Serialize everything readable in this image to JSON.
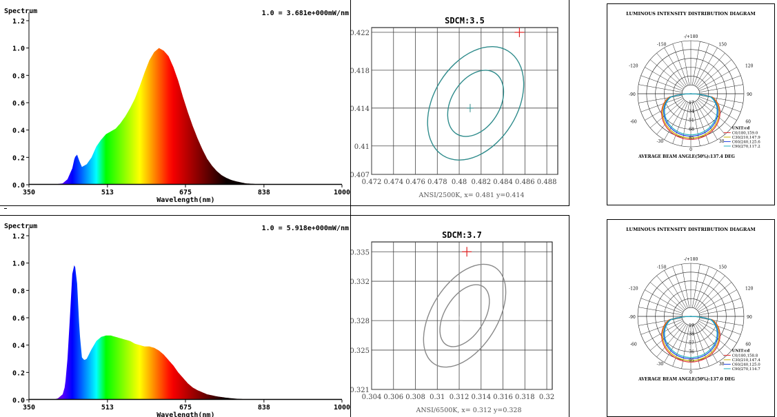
{
  "spectra": [
    {
      "title": "Spectrum",
      "scale_note": "1.0 = 3.681e+000mW/nm",
      "xlabel": "Wavelength(nm)",
      "x_ticks": [
        "350",
        "513",
        "675",
        "838",
        "1000"
      ],
      "y_ticks": [
        "0.0",
        "0.2",
        "0.4",
        "0.6",
        "0.8",
        "1.0",
        "1.2"
      ]
    },
    {
      "title": "Spectrum",
      "scale_note": "1.0 = 5.918e+000mW/nm",
      "xlabel": "Wavelength(nm)",
      "x_ticks": [
        "350",
        "513",
        "675",
        "838",
        "1000"
      ],
      "y_ticks": [
        "0.0",
        "0.2",
        "0.4",
        "0.6",
        "0.8",
        "1.0",
        "1.2"
      ]
    }
  ],
  "sdcm": [
    {
      "title": "SDCM:3.5",
      "footer": "ANSI/2500K, x= 0.481 y=0.414",
      "x_ticks": [
        "0.472",
        "0.474",
        "0.476",
        "0.478",
        "0.48",
        "0.482",
        "0.484",
        "0.486",
        "0.488"
      ],
      "y_ticks": [
        "0.422",
        "0.418",
        "0.414",
        "0.41",
        "0.407"
      ],
      "ellipse_color": "#2e8b8b"
    },
    {
      "title": "SDCM:3.7",
      "footer": "ANSI/6500K, x= 0.312 y=0.328",
      "x_ticks": [
        "0.304",
        "0.306",
        "0.308",
        "0.31",
        "0.312",
        "0.314",
        "0.316",
        "0.318",
        "0.32"
      ],
      "y_ticks": [
        "0.335",
        "0.332",
        "0.328",
        "0.325",
        "0.321"
      ],
      "ellipse_color": "#888888"
    }
  ],
  "polar": [
    {
      "title": "LUMINOUS INTENSITY DISTRIBUTION DIAGRAM",
      "angle_labels": [
        "-/+180",
        "-150",
        "150",
        "-120",
        "120",
        "-90",
        "90",
        "-60",
        "60",
        "-30",
        "30",
        "0"
      ],
      "radial_labels": [
        "17",
        "34",
        "51",
        "68",
        "85"
      ],
      "unit": "UNIT:cd",
      "legend": [
        "C0/180,159.0",
        "C30/210,147.9",
        "C60/240,125.6",
        "C90/270,117.2"
      ],
      "beam_angle": "AVERAGE BEAM ANGLE(50%):137.4 DEG"
    },
    {
      "title": "LUMINOUS INTENSITY DISTRIBUTION DIAGRAM",
      "angle_labels": [
        "-/+180",
        "-150",
        "150",
        "-120",
        "120",
        "-90",
        "90",
        "-60",
        "60",
        "-30",
        "30",
        "0"
      ],
      "radial_labels": [
        "19",
        "38",
        "57",
        "76",
        "95"
      ],
      "unit": "UNIT:cd",
      "legend": [
        "C0/180,158.8",
        "C30/210,147.4",
        "C60/240,125.0",
        "C90/270,114.7"
      ],
      "beam_angle": "AVERAGE BEAM ANGLE(50%):137.0 DEG"
    }
  ],
  "legend_colors": [
    "#e03030",
    "#c8b400",
    "#2040e0",
    "#20b0c0"
  ],
  "chart_data": [
    {
      "type": "area",
      "title": "Spectrum",
      "xlabel": "Wavelength(nm)",
      "ylabel": "",
      "xlim": [
        350,
        1000
      ],
      "ylim": [
        0,
        1.2
      ],
      "x": [
        380,
        400,
        420,
        430,
        440,
        445,
        450,
        455,
        460,
        465,
        470,
        480,
        490,
        500,
        510,
        520,
        530,
        540,
        550,
        560,
        570,
        580,
        590,
        600,
        610,
        620,
        630,
        640,
        650,
        660,
        670,
        680,
        690,
        700,
        710,
        720,
        730,
        740,
        750,
        760,
        770,
        780,
        800,
        830,
        850
      ],
      "values": [
        0.0,
        0.0,
        0.01,
        0.04,
        0.12,
        0.2,
        0.22,
        0.17,
        0.13,
        0.14,
        0.15,
        0.2,
        0.28,
        0.33,
        0.37,
        0.39,
        0.41,
        0.45,
        0.5,
        0.56,
        0.63,
        0.72,
        0.82,
        0.91,
        0.97,
        1.0,
        0.98,
        0.94,
        0.86,
        0.76,
        0.64,
        0.53,
        0.43,
        0.34,
        0.26,
        0.19,
        0.14,
        0.1,
        0.07,
        0.05,
        0.035,
        0.025,
        0.01,
        0.003,
        0.0
      ]
    },
    {
      "type": "area",
      "title": "Spectrum",
      "xlabel": "Wavelength(nm)",
      "ylabel": "",
      "xlim": [
        350,
        1000
      ],
      "ylim": [
        0,
        1.2
      ],
      "x": [
        380,
        400,
        410,
        420,
        425,
        430,
        435,
        440,
        445,
        450,
        455,
        460,
        465,
        470,
        480,
        490,
        500,
        510,
        520,
        530,
        540,
        550,
        560,
        570,
        580,
        590,
        600,
        610,
        620,
        630,
        640,
        650,
        660,
        670,
        680,
        690,
        700,
        720,
        740,
        760,
        780,
        800,
        850
      ],
      "values": [
        0.0,
        0.0,
        0.01,
        0.04,
        0.1,
        0.3,
        0.6,
        0.92,
        1.0,
        0.85,
        0.5,
        0.31,
        0.29,
        0.3,
        0.37,
        0.43,
        0.46,
        0.47,
        0.47,
        0.46,
        0.45,
        0.44,
        0.43,
        0.41,
        0.4,
        0.39,
        0.39,
        0.38,
        0.36,
        0.33,
        0.29,
        0.25,
        0.2,
        0.16,
        0.12,
        0.09,
        0.07,
        0.04,
        0.025,
        0.015,
        0.008,
        0.004,
        0.0
      ]
    },
    {
      "type": "scatter",
      "title": "SDCM:3.5",
      "xlim": [
        0.472,
        0.489
      ],
      "ylim": [
        0.407,
        0.4225
      ],
      "center": {
        "x": 0.481,
        "y": 0.414
      },
      "target": {
        "x": 0.4855,
        "y": 0.422
      },
      "ellipses": [
        {
          "name": "inner",
          "cx": 0.4815,
          "cy": 0.4145,
          "rx": 0.0022,
          "ry": 0.0038
        },
        {
          "name": "outer",
          "cx": 0.4815,
          "cy": 0.4145,
          "rx": 0.0038,
          "ry": 0.0065
        }
      ]
    },
    {
      "type": "scatter",
      "title": "SDCM:3.7",
      "xlim": [
        0.304,
        0.3205
      ],
      "ylim": [
        0.321,
        0.336
      ],
      "center": {
        "x": 0.312,
        "y": 0.328
      },
      "target": {
        "x": 0.3127,
        "y": 0.335
      },
      "ellipses": [
        {
          "name": "inner",
          "cx": 0.3125,
          "cy": 0.3285,
          "rx": 0.0018,
          "ry": 0.0035
        },
        {
          "name": "outer",
          "cx": 0.3125,
          "cy": 0.3285,
          "rx": 0.003,
          "ry": 0.0058
        }
      ]
    }
  ]
}
